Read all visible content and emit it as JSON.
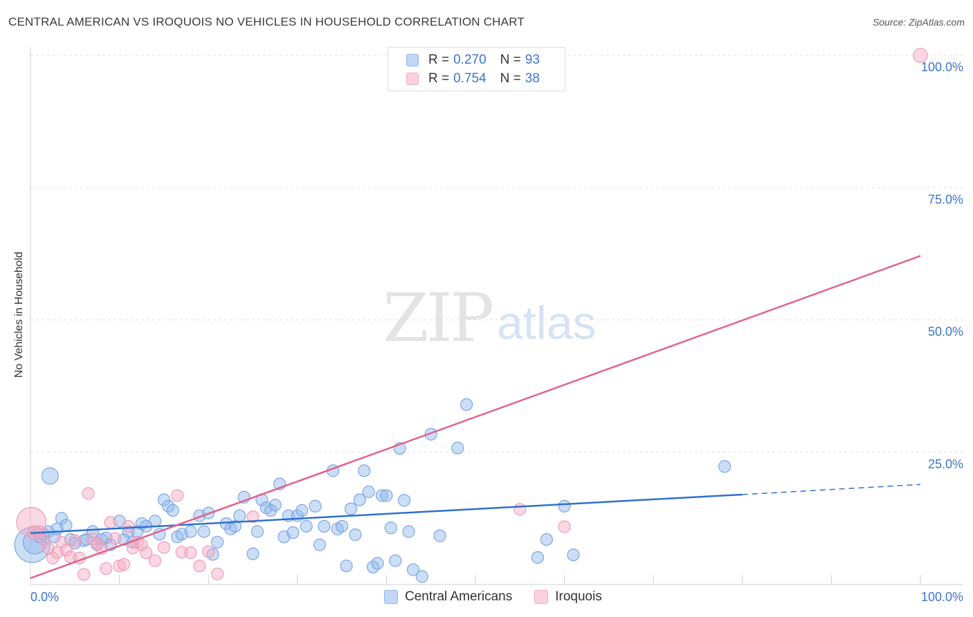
{
  "title": "CENTRAL AMERICAN VS IROQUOIS NO VEHICLES IN HOUSEHOLD CORRELATION CHART",
  "source": "Source: ZipAtlas.com",
  "watermark": {
    "zip": "ZIP",
    "atlas": "atlas"
  },
  "legend": {
    "rows": [
      {
        "r_label": "R =",
        "r_value": "0.270",
        "n_label": "N =",
        "n_value": "93"
      },
      {
        "r_label": "R =",
        "r_value": "0.754",
        "n_label": "N =",
        "n_value": "38"
      }
    ]
  },
  "bottom_legend": [
    "Central Americans",
    "Iroquois"
  ],
  "chart_data": {
    "type": "scatter",
    "title": "CENTRAL AMERICAN VS IROQUOIS NO VEHICLES IN HOUSEHOLD CORRELATION CHART",
    "xlabel": "",
    "ylabel": "No Vehicles in Household",
    "xlim": [
      0,
      100
    ],
    "ylim": [
      0,
      100
    ],
    "x_tick_labels": [
      "0.0%",
      "100.0%"
    ],
    "y_ticks": [
      25,
      50,
      75,
      100
    ],
    "y_tick_labels": [
      "25.0%",
      "50.0%",
      "75.0%",
      "100.0%"
    ],
    "colors": {
      "central": "#8fb5ea",
      "central_line": "#2e6fce",
      "iroquois": "#f4a9c1",
      "iroquois_line": "#e0628f",
      "tick_text": "#3a74d0",
      "grid": "#e0e0e0"
    },
    "series": [
      {
        "name": "Central Americans",
        "r": 0.27,
        "n": 93,
        "trend": {
          "x0": 0,
          "y0": 9.7,
          "x1": 80,
          "y1": 17.0,
          "dash_to_x": 100,
          "dash_to_y": 18.9
        },
        "points": [
          [
            0.2,
            7.5,
            3
          ],
          [
            0.5,
            8,
            2
          ],
          [
            1,
            9,
            1
          ],
          [
            1.5,
            9.5,
            1
          ],
          [
            2,
            10,
            1
          ],
          [
            2.2,
            20.5,
            1.4
          ],
          [
            2.7,
            9,
            1
          ],
          [
            3,
            10.5,
            1
          ],
          [
            3.5,
            12.5,
            1
          ],
          [
            4,
            11.2,
            1
          ],
          [
            4.5,
            8.5,
            1
          ],
          [
            5,
            7.8,
            1
          ],
          [
            6,
            8.3,
            1
          ],
          [
            6.3,
            8.5,
            1
          ],
          [
            7,
            10,
            1
          ],
          [
            7.5,
            7.5,
            1
          ],
          [
            8,
            8.5,
            1
          ],
          [
            8.5,
            8.8,
            1
          ],
          [
            9,
            7.5,
            1
          ],
          [
            10,
            12,
            1
          ],
          [
            10.5,
            8.5,
            1
          ],
          [
            11,
            10,
            1
          ],
          [
            11.5,
            8,
            1
          ],
          [
            12,
            10,
            1
          ],
          [
            12.5,
            11.5,
            1
          ],
          [
            13,
            11,
            1
          ],
          [
            14,
            12,
            1
          ],
          [
            14.5,
            9.5,
            1
          ],
          [
            15,
            16,
            1
          ],
          [
            15.5,
            14.8,
            1
          ],
          [
            16,
            14,
            1
          ],
          [
            16.5,
            9,
            1
          ],
          [
            17,
            9.5,
            1
          ],
          [
            18,
            10,
            1
          ],
          [
            19,
            13,
            1
          ],
          [
            19.5,
            10,
            1
          ],
          [
            20,
            13.5,
            1
          ],
          [
            20.5,
            5.7,
            1
          ],
          [
            21,
            8,
            1
          ],
          [
            22,
            11.5,
            1
          ],
          [
            22.5,
            10.5,
            1
          ],
          [
            23,
            11,
            1
          ],
          [
            23.5,
            13,
            1
          ],
          [
            24,
            16.5,
            1
          ],
          [
            25,
            5.8,
            1
          ],
          [
            25.5,
            10,
            1
          ],
          [
            26,
            16,
            1
          ],
          [
            26.5,
            14.5,
            1
          ],
          [
            27,
            14,
            1
          ],
          [
            27.5,
            15,
            1
          ],
          [
            28,
            19,
            1
          ],
          [
            28.5,
            9,
            1
          ],
          [
            29,
            13,
            1
          ],
          [
            29.5,
            9.8,
            1
          ],
          [
            30,
            13,
            1
          ],
          [
            30.5,
            14,
            1
          ],
          [
            31,
            11,
            1
          ],
          [
            32,
            14.8,
            1
          ],
          [
            32.5,
            7.5,
            1
          ],
          [
            33,
            11,
            1
          ],
          [
            34,
            21.5,
            1
          ],
          [
            34.5,
            10.5,
            1
          ],
          [
            35,
            11,
            1
          ],
          [
            35.5,
            3.5,
            1
          ],
          [
            36,
            14.3,
            1
          ],
          [
            36.5,
            9.4,
            1
          ],
          [
            37,
            16,
            1
          ],
          [
            37.5,
            21.5,
            1
          ],
          [
            38,
            17.5,
            1
          ],
          [
            38.5,
            3.3,
            1
          ],
          [
            39,
            4,
            1
          ],
          [
            39.5,
            16.8,
            1
          ],
          [
            40,
            16.8,
            1
          ],
          [
            40.5,
            10.7,
            1
          ],
          [
            41,
            4.5,
            1
          ],
          [
            41.5,
            25.7,
            1
          ],
          [
            42,
            15.9,
            1
          ],
          [
            42.5,
            10,
            1
          ],
          [
            43,
            2.8,
            1
          ],
          [
            44,
            1.5,
            1
          ],
          [
            45,
            28.4,
            1
          ],
          [
            46,
            9.2,
            1
          ],
          [
            48,
            25.8,
            1
          ],
          [
            49,
            34,
            1
          ],
          [
            57,
            5.1,
            1
          ],
          [
            58,
            8.5,
            1
          ],
          [
            60,
            14.8,
            1
          ],
          [
            61,
            5.6,
            1
          ],
          [
            78,
            22.3,
            1
          ]
        ]
      },
      {
        "name": "Iroquois",
        "r": 0.754,
        "n": 38,
        "trend": {
          "x0": 0,
          "y0": 1.2,
          "x1": 100,
          "y1": 62.1
        },
        "points": [
          [
            0.1,
            11.8,
            2.5
          ],
          [
            0.5,
            9.8,
            1.2
          ],
          [
            1,
            10,
            1
          ],
          [
            1.5,
            8.5,
            1
          ],
          [
            2,
            6.8,
            1
          ],
          [
            2.5,
            5,
            1
          ],
          [
            3,
            6,
            1
          ],
          [
            3.5,
            8,
            1
          ],
          [
            4,
            6.5,
            1
          ],
          [
            4.5,
            5.2,
            1
          ],
          [
            5,
            8.3,
            1
          ],
          [
            5.5,
            5,
            1
          ],
          [
            6,
            1.9,
            1
          ],
          [
            6.5,
            17.2,
            1
          ],
          [
            7,
            8.6,
            1
          ],
          [
            7.5,
            7.8,
            1
          ],
          [
            8,
            6.8,
            1
          ],
          [
            8.5,
            3,
            1
          ],
          [
            9,
            11.7,
            1
          ],
          [
            9.5,
            8.7,
            1
          ],
          [
            10,
            3.5,
            1
          ],
          [
            10.5,
            3.8,
            1
          ],
          [
            11,
            11,
            1
          ],
          [
            11.5,
            6.9,
            1
          ],
          [
            12,
            8,
            1
          ],
          [
            12.5,
            7.5,
            1
          ],
          [
            13,
            6,
            1
          ],
          [
            14,
            4.5,
            1
          ],
          [
            15,
            7,
            1
          ],
          [
            16.5,
            16.8,
            1
          ],
          [
            17,
            6.1,
            1
          ],
          [
            18,
            6,
            1
          ],
          [
            19,
            3.5,
            1
          ],
          [
            20,
            6.2,
            1
          ],
          [
            21,
            2,
            1
          ],
          [
            25,
            12.8,
            1
          ],
          [
            55,
            14.2,
            1
          ],
          [
            60,
            10.9,
            1
          ],
          [
            100,
            100,
            1.2
          ]
        ]
      }
    ]
  }
}
